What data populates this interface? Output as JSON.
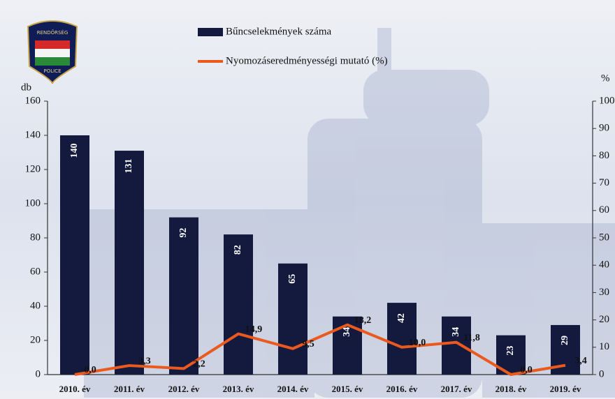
{
  "logo": {
    "top": "RENDŐRSÉG",
    "bottom": "POLICE"
  },
  "chart_data": {
    "type": "bar",
    "categories": [
      "2010. év",
      "2011. év",
      "2012. év",
      "2013. év",
      "2014. év",
      "2015. év",
      "2016. év",
      "2017. év",
      "2018. év",
      "2019. év"
    ],
    "series": [
      {
        "name": "Bűncselekmények száma",
        "type": "bar",
        "color": "#141a3e",
        "values": [
          140,
          131,
          92,
          82,
          65,
          34,
          42,
          34,
          23,
          29
        ]
      },
      {
        "name": "Nyomozáseredményességi mutató (%)",
        "type": "line",
        "axis": "y2",
        "color": "#ea5a1e",
        "values": [
          0,
          3.3,
          2.2,
          14.9,
          9.5,
          18.2,
          10.0,
          11.8,
          0,
          3.4
        ],
        "value_labels": [
          "0,0",
          "3,3",
          "2,2",
          "14,9",
          "9,5",
          "18,2",
          "10,0",
          "11,8",
          "0,0",
          "3,4"
        ]
      }
    ],
    "ylabel": "db",
    "y2label": "%",
    "ylim": [
      0,
      160
    ],
    "yticks": [
      0,
      20,
      40,
      60,
      80,
      100,
      120,
      140,
      160
    ],
    "y2lim": [
      0,
      100
    ],
    "y2ticks": [
      0,
      10,
      20,
      30,
      40,
      50,
      60,
      70,
      80,
      90,
      100
    ]
  }
}
